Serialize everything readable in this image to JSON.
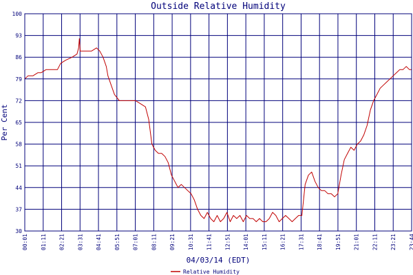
{
  "chart_data": {
    "type": "line",
    "title": "Outside Relative Humidity",
    "xlabel": "04/03/14 (EDT)",
    "ylabel": "Per Cent",
    "ylim": [
      30,
      100
    ],
    "yticks": [
      30,
      37,
      44,
      51,
      58,
      65,
      72,
      79,
      86,
      93,
      100
    ],
    "xticks": [
      "00:01",
      "01:11",
      "02:21",
      "03:31",
      "04:41",
      "05:51",
      "07:01",
      "08:11",
      "09:21",
      "10:31",
      "11:41",
      "12:51",
      "14:01",
      "15:11",
      "16:21",
      "17:31",
      "18:41",
      "19:51",
      "21:01",
      "22:11",
      "23:21",
      "23:44"
    ],
    "grid": true,
    "legend_position": "bottom",
    "colors": {
      "series": "#c00000",
      "grid": "#00007a",
      "text": "#00007a"
    },
    "series": [
      {
        "name": "Relative Humidity",
        "x": [
          0,
          0.2,
          0.5,
          0.8,
          1.0,
          1.3,
          1.7,
          2.0,
          2.2,
          2.5,
          2.9,
          3.2,
          3.3,
          3.35,
          3.4,
          3.5,
          3.8,
          4.1,
          4.4,
          4.6,
          4.8,
          5.0,
          5.1,
          5.3,
          5.5,
          5.8,
          6.1,
          6.4,
          6.8,
          7.1,
          7.4,
          7.6,
          7.8,
          8.0,
          8.2,
          8.4,
          8.6,
          8.8,
          9.0,
          9.2,
          9.4,
          9.6,
          9.8,
          10.0,
          10.2,
          10.4,
          10.6,
          10.8,
          11.0,
          11.2,
          11.4,
          11.6,
          11.8,
          12.0,
          12.2,
          12.4,
          12.6,
          12.8,
          13.0,
          13.2,
          13.4,
          13.6,
          13.8,
          14.0,
          14.2,
          14.4,
          14.6,
          14.8,
          15.0,
          15.2,
          15.4,
          15.6,
          15.8,
          16.0,
          16.2,
          16.4,
          16.6,
          16.8,
          17.0,
          17.2,
          17.4,
          17.6,
          17.8,
          18.0,
          18.2,
          18.4,
          18.6,
          18.8,
          19.0,
          19.2,
          19.4,
          19.6,
          19.8,
          20.0,
          20.2,
          20.4,
          20.6,
          20.8,
          21.0,
          21.2,
          21.4,
          21.6,
          21.8,
          22.0,
          22.2,
          22.4,
          22.6,
          22.8,
          23.0,
          23.2,
          23.4,
          23.6,
          23.73
        ],
        "values": [
          79,
          80,
          80,
          81,
          81,
          82,
          82,
          82,
          84,
          85,
          86,
          87,
          89,
          92,
          88,
          88,
          88,
          88,
          89,
          88,
          86,
          83,
          80,
          77,
          74,
          72,
          72,
          72,
          72,
          71,
          70,
          66,
          58,
          56,
          55,
          55,
          54,
          52,
          48,
          46,
          44,
          45,
          44,
          43,
          42,
          40,
          37,
          35,
          34,
          36,
          34,
          33,
          35,
          33,
          34,
          36,
          33,
          35,
          34,
          35,
          33,
          35,
          34,
          34,
          33,
          34,
          33,
          33,
          34,
          36,
          35,
          33,
          34,
          35,
          34,
          33,
          34,
          35,
          35,
          45,
          48,
          49,
          46,
          44,
          43,
          43,
          42,
          42,
          41,
          42,
          48,
          53,
          55,
          57,
          56,
          58,
          59,
          61,
          64,
          69,
          72,
          74,
          76,
          77,
          78,
          79,
          80,
          81,
          82,
          82,
          83,
          82,
          82
        ]
      }
    ]
  }
}
